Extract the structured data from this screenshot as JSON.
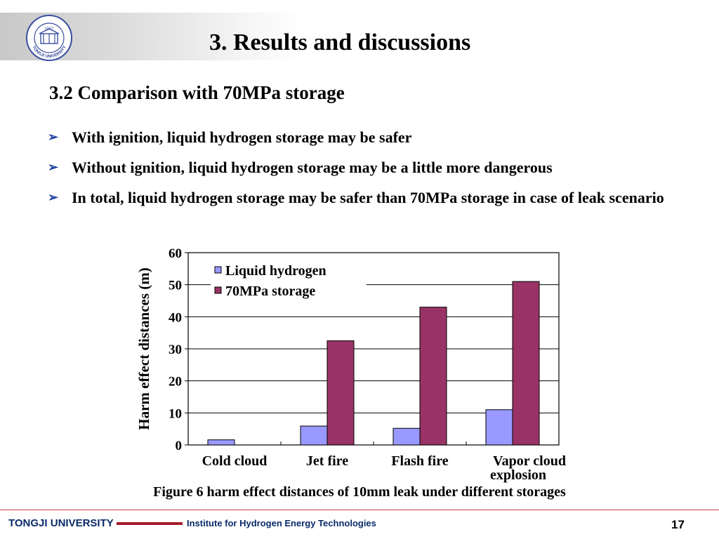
{
  "header": {
    "title": "3. Results and discussions",
    "logo_text": "TONGJI UNIVERSITY",
    "logo_year": "1907"
  },
  "section_title": "3.2 Comparison with 70MPa storage",
  "bullets": [
    "With ignition, liquid hydrogen storage may be safer",
    "Without ignition, liquid hydrogen storage may be a little more dangerous",
    "In total, liquid hydrogen storage may be safer than 70MPa storage in case of leak scenario"
  ],
  "chart_data": {
    "type": "bar",
    "categories": [
      "Cold cloud",
      "Jet fire",
      "Flash fire",
      "Vapor cloud explosion"
    ],
    "series": [
      {
        "name": "Liquid hydrogen",
        "values": [
          1.6,
          5.9,
          5.2,
          11
        ],
        "color": "#9999ff"
      },
      {
        "name": "70MPa storage",
        "values": [
          0,
          32.5,
          43,
          51
        ],
        "color": "#993366"
      }
    ],
    "ylabel": "Harm effect distances (m)",
    "ylim": [
      0,
      60
    ],
    "yticks": [
      0,
      10,
      20,
      30,
      40,
      50,
      60
    ],
    "grid": true,
    "legend_position": "top-left"
  },
  "caption": "Figure 6 harm effect distances of 10mm leak under different storages",
  "footer": {
    "university": "TONGJI UNIVERSITY",
    "institute": "Institute for Hydrogen Energy Technologies",
    "page": "17"
  },
  "colors": {
    "footer_accent": "#a51c2a",
    "footer_text": "#0a2a6a",
    "logo": "#3a4f9f"
  }
}
